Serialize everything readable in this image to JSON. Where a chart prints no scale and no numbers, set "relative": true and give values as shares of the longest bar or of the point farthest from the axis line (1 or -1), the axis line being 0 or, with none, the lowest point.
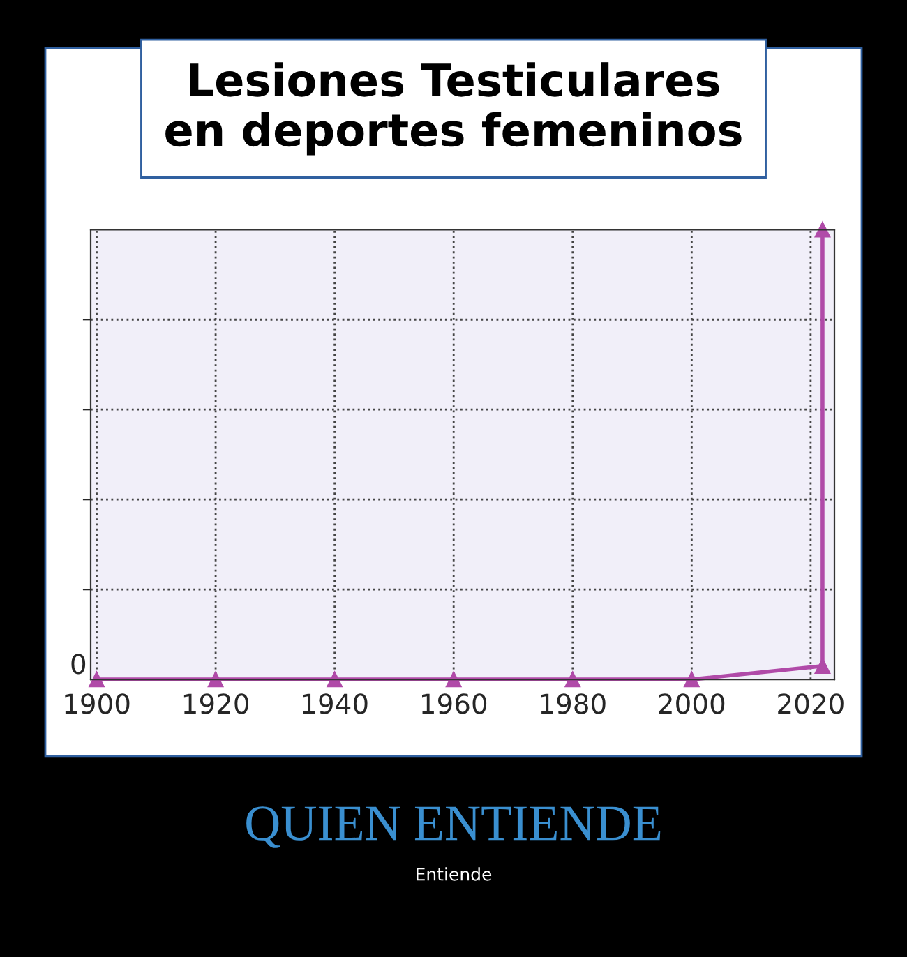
{
  "chart_data": {
    "type": "line",
    "title": "Lesiones Testiculares\nen deportes femeninos",
    "relative": true,
    "x": [
      1900,
      1920,
      1940,
      1960,
      1980,
      2000,
      2022,
      2022
    ],
    "series": [
      {
        "color": "#b04aa8",
        "values": [
          0,
          0,
          0,
          0,
          0,
          0,
          0.03,
          1
        ]
      }
    ],
    "xlim": [
      1899,
      2024
    ],
    "xticks": [
      1900,
      1920,
      1940,
      1960,
      1980,
      2000,
      2020
    ],
    "grid": true,
    "marker": "triangle",
    "line_style": "solid",
    "tick_labels": "x",
    "annotations": [
      "0",
      "QUIEN ENTIENDE",
      "Entiende"
    ]
  }
}
